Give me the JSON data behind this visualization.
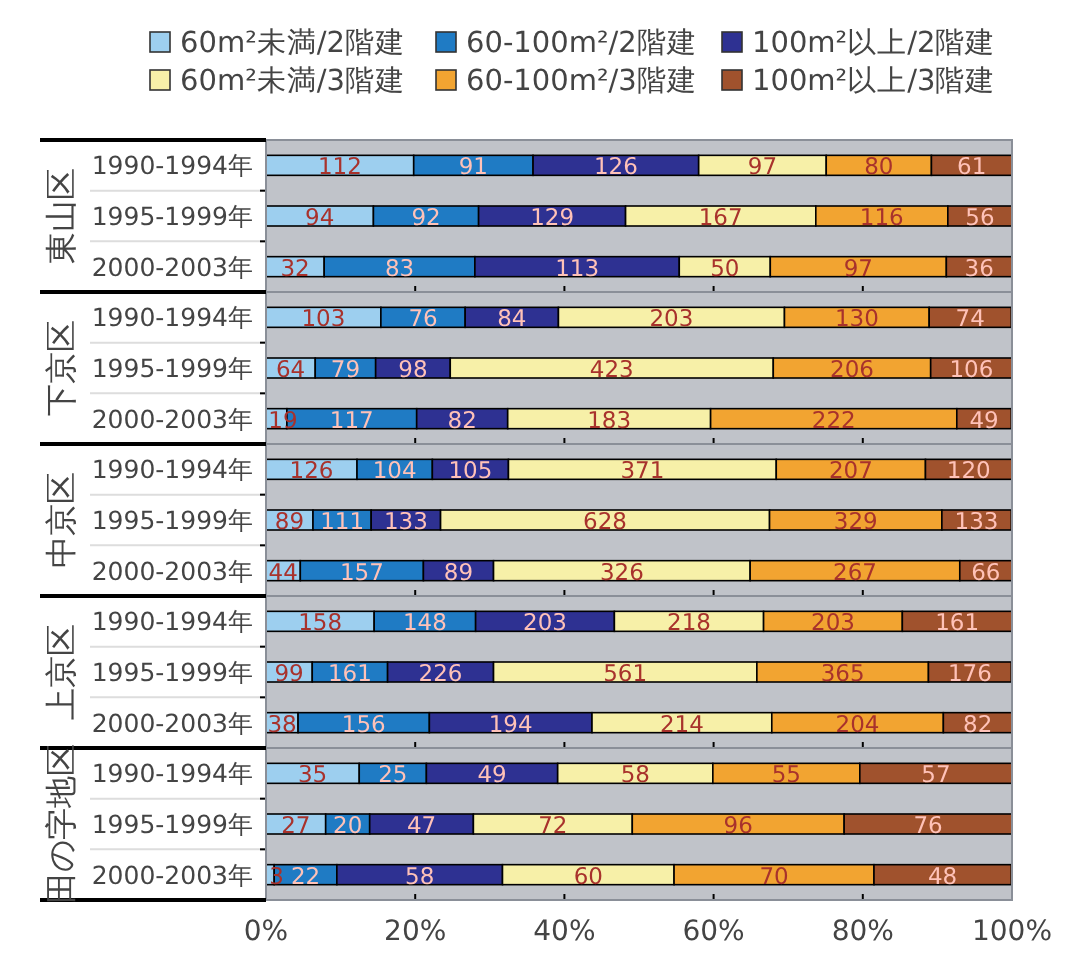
{
  "chart_data": [
    {
      "type": "bar",
      "title": "東山区",
      "orientation": "horizontal",
      "stacked": true,
      "legend": "top",
      "tick_labels": "y",
      "xlim": [
        0,
        100
      ],
      "xticks": [
        0,
        20,
        40,
        60,
        80,
        100
      ],
      "categories": [
        "1990-1994年",
        "1995-1999年",
        "2000-2003年"
      ],
      "annotations": [
        "112",
        "94",
        "32",
        "91",
        "92",
        "83",
        "126",
        "129",
        "113",
        "97",
        "167",
        "50",
        "80",
        "116",
        "97",
        "61",
        "56",
        "36"
      ],
      "series": [
        {
          "name": "60m²未満/2階建",
          "color": "#9dcfef",
          "values": [
            19.8,
            14.4,
            7.8
          ]
        },
        {
          "name": "60-100m²/2階建",
          "color": "#1f7bc4",
          "values": [
            16.0,
            14.1,
            20.2
          ]
        },
        {
          "name": "100m²以上/2階建",
          "color": "#2e3192",
          "values": [
            22.2,
            19.7,
            27.4
          ]
        },
        {
          "name": "60m²未満/3階建",
          "color": "#f7f0a8",
          "values": [
            17.1,
            25.5,
            12.2
          ]
        },
        {
          "name": "60-100m²/3階建",
          "color": "#f2a431",
          "values": [
            14.1,
            17.7,
            23.6
          ]
        },
        {
          "name": "100m²以上/3階建",
          "color": "#a0522d",
          "values": [
            10.8,
            8.6,
            8.8
          ]
        }
      ]
    },
    {
      "type": "bar",
      "title": "下京区",
      "orientation": "horizontal",
      "stacked": true,
      "tick_labels": "y",
      "xlim": [
        0,
        100
      ],
      "xticks": [
        0,
        20,
        40,
        60,
        80,
        100
      ],
      "categories": [
        "1990-1994年",
        "1995-1999年",
        "2000-2003年"
      ],
      "annotations": [
        "103",
        "64",
        "19",
        "76",
        "79",
        "117",
        "84",
        "98",
        "82",
        "203",
        "423",
        "183",
        "130",
        "206",
        "222",
        "74",
        "106",
        "49"
      ],
      "series": [
        {
          "color": "#9dcfef",
          "values": [
            15.4,
            6.6,
            2.8
          ]
        },
        {
          "color": "#1f7bc4",
          "values": [
            11.3,
            8.1,
            17.4
          ]
        },
        {
          "color": "#2e3192",
          "values": [
            12.5,
            10.0,
            12.2
          ]
        },
        {
          "color": "#f7f0a8",
          "values": [
            30.3,
            43.3,
            27.2
          ]
        },
        {
          "color": "#f2a431",
          "values": [
            19.4,
            21.1,
            33.0
          ]
        },
        {
          "color": "#a0522d",
          "values": [
            11.0,
            10.9,
            7.3
          ]
        }
      ]
    },
    {
      "type": "bar",
      "title": "中京区",
      "orientation": "horizontal",
      "stacked": true,
      "tick_labels": "y",
      "xlim": [
        0,
        100
      ],
      "xticks": [
        0,
        20,
        40,
        60,
        80,
        100
      ],
      "categories": [
        "1990-1994年",
        "1995-1999年",
        "2000-2003年"
      ],
      "annotations": [
        "126",
        "89",
        "44",
        "104",
        "111",
        "157",
        "105",
        "133",
        "89",
        "371",
        "628",
        "326",
        "207",
        "329",
        "267",
        "120",
        "133",
        "66"
      ],
      "series": [
        {
          "color": "#9dcfef",
          "values": [
            12.2,
            6.3,
            4.6
          ]
        },
        {
          "color": "#1f7bc4",
          "values": [
            10.1,
            7.8,
            16.5
          ]
        },
        {
          "color": "#2e3192",
          "values": [
            10.2,
            9.3,
            9.4
          ]
        },
        {
          "color": "#f7f0a8",
          "values": [
            35.9,
            44.1,
            34.4
          ]
        },
        {
          "color": "#f2a431",
          "values": [
            20.0,
            23.1,
            28.1
          ]
        },
        {
          "color": "#a0522d",
          "values": [
            11.6,
            9.3,
            7.0
          ]
        }
      ]
    },
    {
      "type": "bar",
      "title": "上京区",
      "orientation": "horizontal",
      "stacked": true,
      "tick_labels": "y",
      "xlim": [
        0,
        100
      ],
      "xticks": [
        0,
        20,
        40,
        60,
        80,
        100
      ],
      "categories": [
        "1990-1994年",
        "1995-1999年",
        "2000-2003年"
      ],
      "annotations": [
        "158",
        "99",
        "38",
        "148",
        "161",
        "156",
        "203",
        "226",
        "194",
        "218",
        "561",
        "214",
        "203",
        "365",
        "204",
        "161",
        "176",
        "82"
      ],
      "series": [
        {
          "color": "#9dcfef",
          "values": [
            14.5,
            6.2,
            4.3
          ]
        },
        {
          "color": "#1f7bc4",
          "values": [
            13.6,
            10.1,
            17.6
          ]
        },
        {
          "color": "#2e3192",
          "values": [
            18.6,
            14.2,
            21.8
          ]
        },
        {
          "color": "#f7f0a8",
          "values": [
            20.0,
            35.3,
            24.1
          ]
        },
        {
          "color": "#f2a431",
          "values": [
            18.6,
            23.0,
            23.0
          ]
        },
        {
          "color": "#a0522d",
          "values": [
            14.7,
            11.1,
            9.2
          ]
        }
      ]
    },
    {
      "type": "bar",
      "title": "田の字地区",
      "orientation": "horizontal",
      "stacked": true,
      "xlim": [
        0,
        100
      ],
      "xticks": [
        {
          "value": 0,
          "label": "0%"
        },
        {
          "value": 20,
          "label": "20%"
        },
        {
          "value": 40,
          "label": "40%"
        },
        {
          "value": 60,
          "label": "60%"
        },
        {
          "value": 80,
          "label": "80%"
        },
        {
          "value": 100,
          "label": "100%"
        }
      ],
      "categories": [
        "1990-1994年",
        "1995-1999年",
        "2000-2003年"
      ],
      "annotations": [
        "35",
        "27",
        "3",
        "25",
        "20",
        "22",
        "49",
        "47",
        "58",
        "58",
        "72",
        "60",
        "55",
        "96",
        "70",
        "57",
        "76",
        "48"
      ],
      "series": [
        {
          "color": "#9dcfef",
          "values": [
            12.5,
            8.0,
            1.1
          ]
        },
        {
          "color": "#1f7bc4",
          "values": [
            9.0,
            5.9,
            8.4
          ]
        },
        {
          "color": "#2e3192",
          "values": [
            17.6,
            13.9,
            22.2
          ]
        },
        {
          "color": "#f7f0a8",
          "values": [
            20.8,
            21.3,
            23.0
          ]
        },
        {
          "color": "#f2a431",
          "values": [
            19.7,
            28.4,
            26.8
          ]
        },
        {
          "color": "#a0522d",
          "values": [
            20.4,
            22.5,
            18.4
          ]
        }
      ]
    }
  ]
}
